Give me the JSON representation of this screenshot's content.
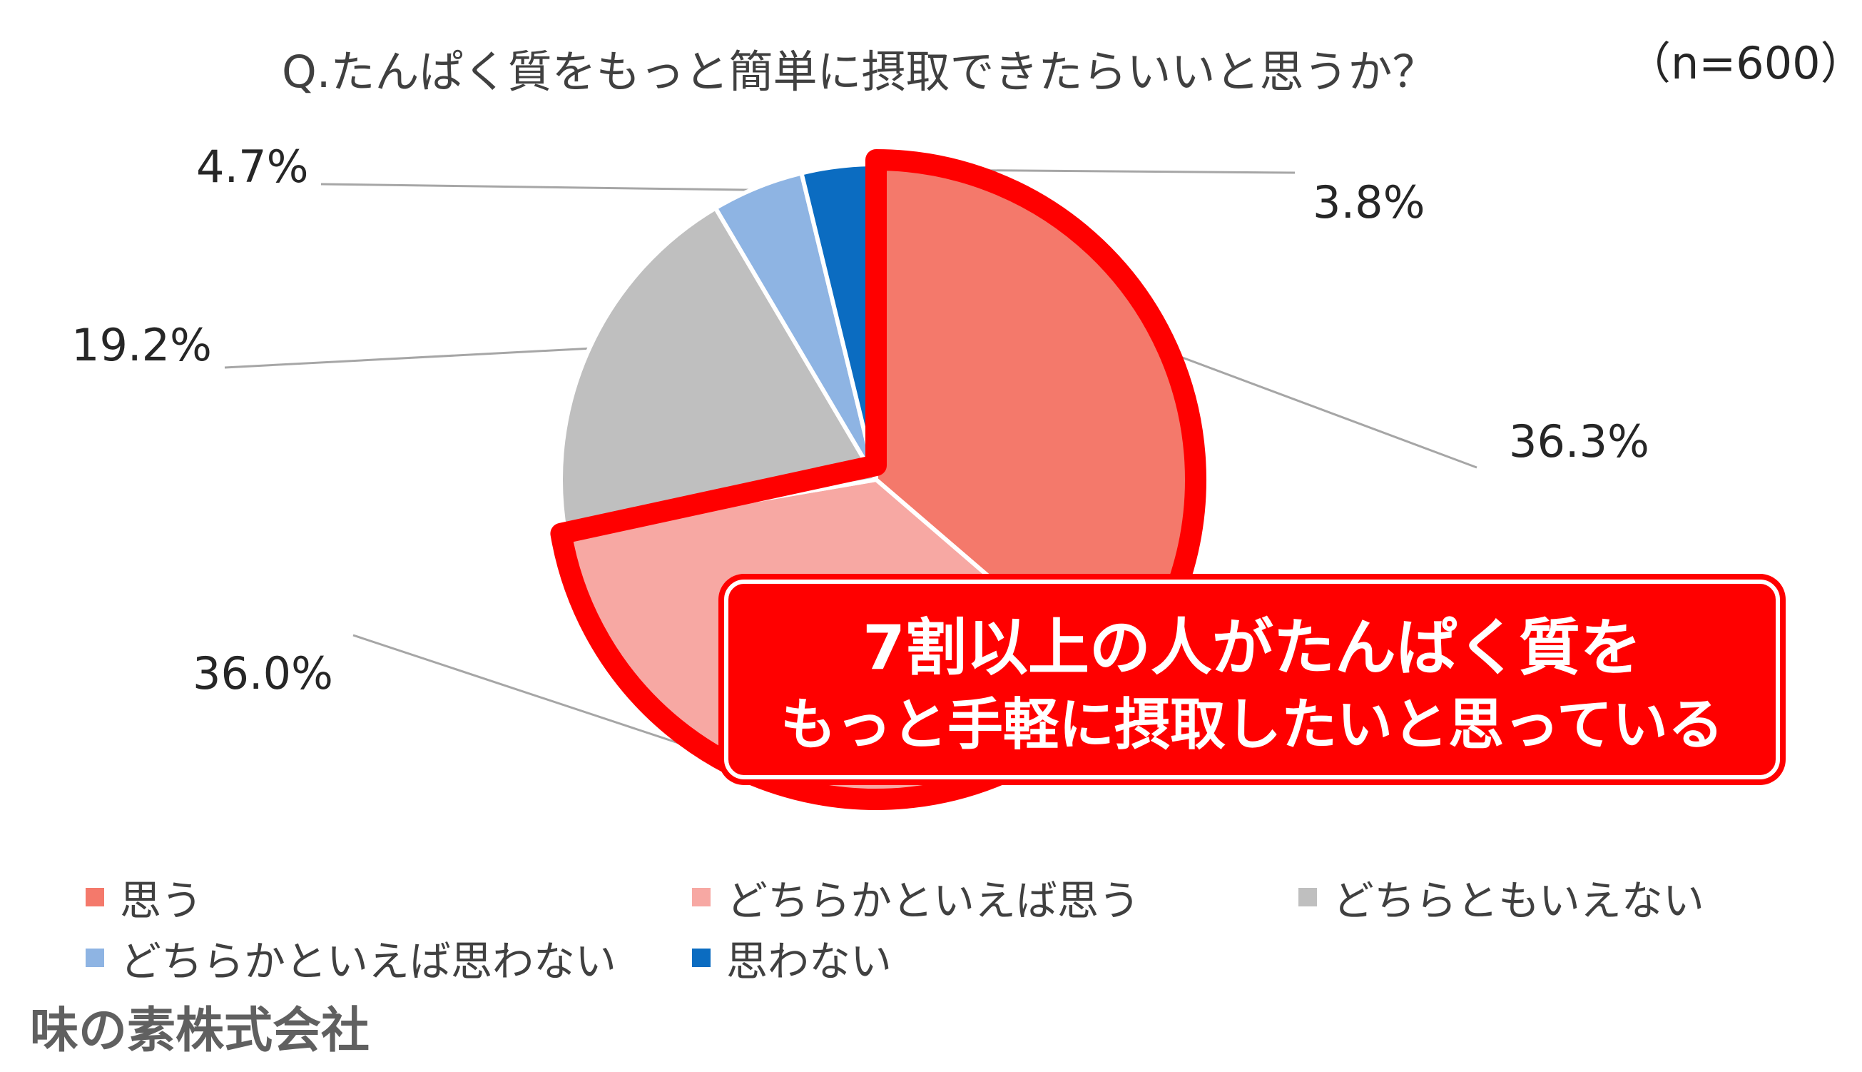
{
  "question": "Q.たんぱく質をもっと簡単に摂取できたらいいと思うか？",
  "sample_size": "（n=600）",
  "company": "味の素株式会社",
  "callout": {
    "line1": "7割以上の人がたんぱく質を",
    "line2": "もっと手軽に摂取したいと思っている"
  },
  "colors": {
    "omou": "#f4796b",
    "dochiraka_omou": "#f7a8a3",
    "dochira_mo": "#bfbfbf",
    "dochiraka_omowanai": "#8eb4e3",
    "omowanai": "#0b6cc1",
    "highlight": "#ff0000"
  },
  "chart_data": {
    "type": "pie",
    "title": "Q.たんぱく質をもっと簡単に摂取できたらいいと思うか？",
    "n": "n=600",
    "categories": [
      "思う",
      "どちらかといえば思う",
      "どちらともいえない",
      "どちらかといえば思わない",
      "思わない"
    ],
    "values": [
      36.3,
      36.0,
      19.2,
      4.7,
      3.8
    ],
    "labels": [
      "36.3%",
      "36.0%",
      "19.2%",
      "4.7%",
      "3.8%"
    ],
    "unit": "%",
    "legend_position": "bottom",
    "highlighted_categories": [
      "思う",
      "どちらかといえば思う"
    ]
  }
}
